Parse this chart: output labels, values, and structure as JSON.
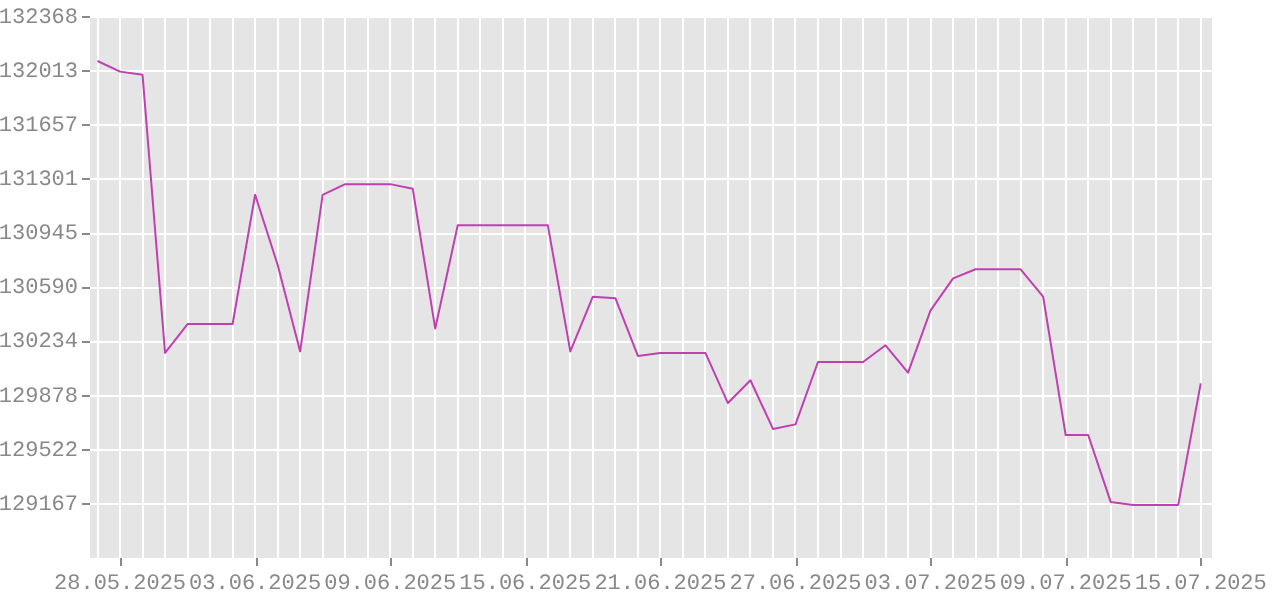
{
  "chart_data": {
    "type": "line",
    "x": [
      "2025-05-27",
      "2025-05-28",
      "2025-05-29",
      "2025-05-30",
      "2025-05-31",
      "2025-06-01",
      "2025-06-02",
      "2025-06-03",
      "2025-06-04",
      "2025-06-05",
      "2025-06-06",
      "2025-06-07",
      "2025-06-08",
      "2025-06-09",
      "2025-06-10",
      "2025-06-11",
      "2025-06-12",
      "2025-06-13",
      "2025-06-14",
      "2025-06-15",
      "2025-06-16",
      "2025-06-17",
      "2025-06-18",
      "2025-06-19",
      "2025-06-20",
      "2025-06-21",
      "2025-06-22",
      "2025-06-23",
      "2025-06-24",
      "2025-06-25",
      "2025-06-26",
      "2025-06-27",
      "2025-06-28",
      "2025-06-29",
      "2025-06-30",
      "2025-07-01",
      "2025-07-02",
      "2025-07-03",
      "2025-07-04",
      "2025-07-05",
      "2025-07-06",
      "2025-07-07",
      "2025-07-08",
      "2025-07-09",
      "2025-07-10",
      "2025-07-11",
      "2025-07-12",
      "2025-07-13",
      "2025-07-14",
      "2025-07-15"
    ],
    "series": [
      {
        "color": "#c040b0",
        "values": [
          132080,
          132010,
          131990,
          130160,
          130350,
          130350,
          130350,
          131200,
          130740,
          130170,
          131200,
          131270,
          131270,
          131270,
          131240,
          130320,
          131000,
          131000,
          131000,
          131000,
          131000,
          130170,
          130530,
          130520,
          130140,
          130160,
          130160,
          130160,
          129830,
          129980,
          129660,
          129690,
          130100,
          130100,
          130100,
          130210,
          130030,
          130440,
          130650,
          130710,
          130710,
          130710,
          130530,
          129620,
          129620,
          129180,
          129160,
          129160,
          129160,
          129960
        ]
      }
    ],
    "xlim": [
      "2025-05-26T16:00",
      "2025-07-15T12:00"
    ],
    "xticks": [
      {
        "value": "2025-05-27",
        "label": null
      },
      {
        "value": "2025-05-28",
        "label": "28.05.2025"
      },
      {
        "value": "2025-05-29",
        "label": null
      },
      {
        "value": "2025-05-30",
        "label": null
      },
      {
        "value": "2025-05-31",
        "label": null
      },
      {
        "value": "2025-06-01",
        "label": null
      },
      {
        "value": "2025-06-02",
        "label": null
      },
      {
        "value": "2025-06-03",
        "label": "03.06.2025"
      },
      {
        "value": "2025-06-04",
        "label": null
      },
      {
        "value": "2025-06-05",
        "label": null
      },
      {
        "value": "2025-06-06",
        "label": null
      },
      {
        "value": "2025-06-07",
        "label": null
      },
      {
        "value": "2025-06-08",
        "label": null
      },
      {
        "value": "2025-06-09",
        "label": "09.06.2025"
      },
      {
        "value": "2025-06-10",
        "label": null
      },
      {
        "value": "2025-06-11",
        "label": null
      },
      {
        "value": "2025-06-12",
        "label": null
      },
      {
        "value": "2025-06-13",
        "label": null
      },
      {
        "value": "2025-06-14",
        "label": null
      },
      {
        "value": "2025-06-15",
        "label": "15.06.2025"
      },
      {
        "value": "2025-06-16",
        "label": null
      },
      {
        "value": "2025-06-17",
        "label": null
      },
      {
        "value": "2025-06-18",
        "label": null
      },
      {
        "value": "2025-06-19",
        "label": null
      },
      {
        "value": "2025-06-20",
        "label": null
      },
      {
        "value": "2025-06-21",
        "label": "21.06.2025"
      },
      {
        "value": "2025-06-22",
        "label": null
      },
      {
        "value": "2025-06-23",
        "label": null
      },
      {
        "value": "2025-06-24",
        "label": null
      },
      {
        "value": "2025-06-25",
        "label": null
      },
      {
        "value": "2025-06-26",
        "label": null
      },
      {
        "value": "2025-06-27",
        "label": "27.06.2025"
      },
      {
        "value": "2025-06-28",
        "label": null
      },
      {
        "value": "2025-06-29",
        "label": null
      },
      {
        "value": "2025-06-30",
        "label": null
      },
      {
        "value": "2025-07-01",
        "label": null
      },
      {
        "value": "2025-07-02",
        "label": null
      },
      {
        "value": "2025-07-03",
        "label": "03.07.2025"
      },
      {
        "value": "2025-07-04",
        "label": null
      },
      {
        "value": "2025-07-05",
        "label": null
      },
      {
        "value": "2025-07-06",
        "label": null
      },
      {
        "value": "2025-07-07",
        "label": null
      },
      {
        "value": "2025-07-08",
        "label": null
      },
      {
        "value": "2025-07-09",
        "label": "09.07.2025"
      },
      {
        "value": "2025-07-10",
        "label": null
      },
      {
        "value": "2025-07-11",
        "label": null
      },
      {
        "value": "2025-07-12",
        "label": null
      },
      {
        "value": "2025-07-13",
        "label": null
      },
      {
        "value": "2025-07-14",
        "label": null
      },
      {
        "value": "2025-07-15",
        "label": "15.07.2025"
      }
    ],
    "ylim": [
      128811,
      132368
    ],
    "yticks": [
      129167,
      129522,
      129878,
      130234,
      130590,
      130945,
      131301,
      131657,
      132013,
      132368
    ],
    "grid": true,
    "legend": false,
    "marker": "none"
  }
}
